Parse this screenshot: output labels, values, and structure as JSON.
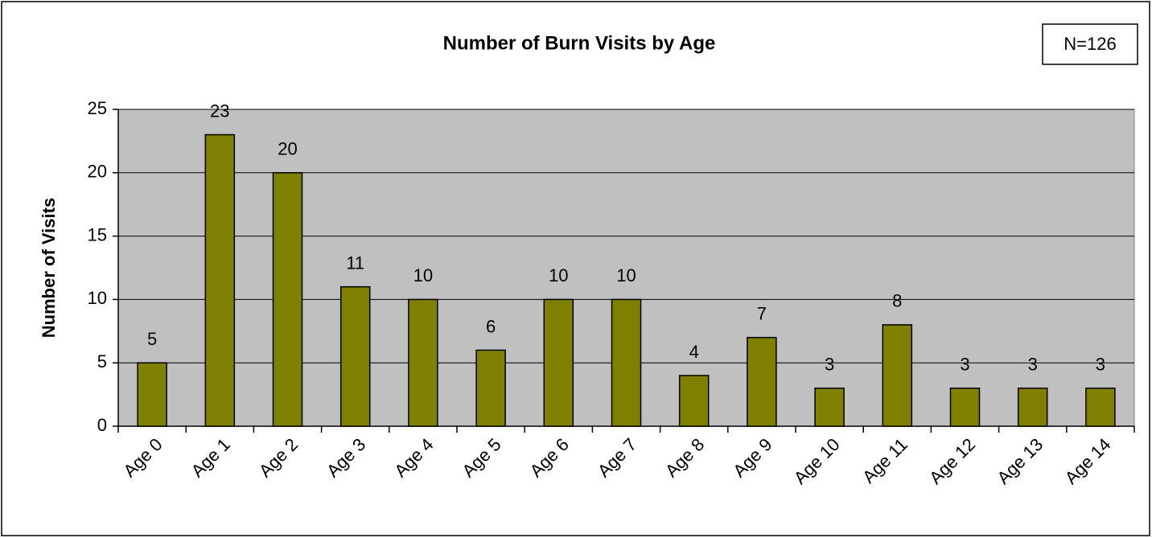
{
  "chart_data": {
    "type": "bar",
    "title": "Number of Burn Visits by Age",
    "annotation": "N=126",
    "y_label": "Number of Visits",
    "categories": [
      "Age 0",
      "Age 1",
      "Age 2",
      "Age 3",
      "Age 4",
      "Age 5",
      "Age 6",
      "Age 7",
      "Age 8",
      "Age 9",
      "Age 10",
      "Age 11",
      "Age 12",
      "Age 13",
      "Age 14"
    ],
    "values": [
      5,
      23,
      20,
      11,
      10,
      6,
      10,
      10,
      4,
      7,
      3,
      8,
      3,
      3,
      3
    ],
    "color": "#808000",
    "ylim": [
      0,
      25
    ],
    "yticks": [
      0,
      5,
      10,
      15,
      20,
      25
    ],
    "grid": true
  }
}
